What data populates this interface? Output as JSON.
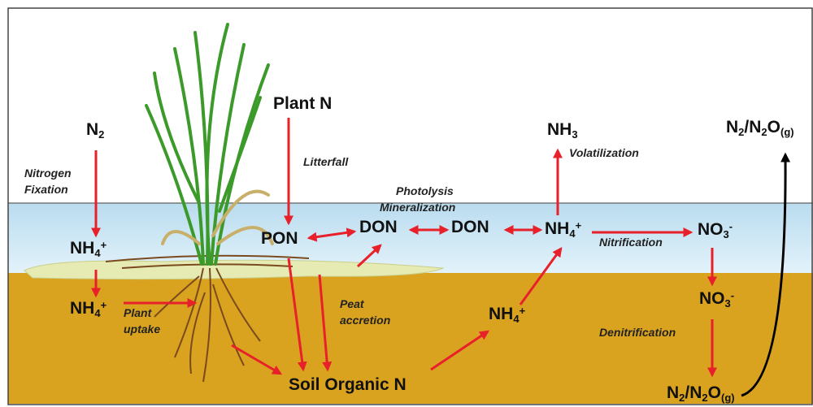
{
  "nodes": [
    {
      "parts": [
        {
          "text": "N"
        },
        {
          "text": "2",
          "pos": "sub"
        }
      ]
    },
    {
      "parts": [
        {
          "text": "NH"
        },
        {
          "text": "4",
          "pos": "sub"
        },
        {
          "text": "+",
          "pos": "sup"
        }
      ]
    },
    {
      "parts": [
        {
          "text": "NH"
        },
        {
          "text": "4",
          "pos": "sub"
        },
        {
          "text": "+",
          "pos": "sup"
        }
      ]
    },
    {
      "parts": [
        {
          "text": "Plant N"
        }
      ]
    },
    {
      "parts": [
        {
          "text": "PON"
        }
      ]
    },
    {
      "parts": [
        {
          "text": "DON"
        }
      ]
    },
    {
      "parts": [
        {
          "text": "DON"
        }
      ]
    },
    {
      "parts": [
        {
          "text": "NH"
        },
        {
          "text": "4",
          "pos": "sub"
        },
        {
          "text": "+",
          "pos": "sup"
        }
      ]
    },
    {
      "parts": [
        {
          "text": "NH"
        },
        {
          "text": "3",
          "pos": "sub"
        }
      ]
    },
    {
      "parts": [
        {
          "text": "NO"
        },
        {
          "text": "3",
          "pos": "sub"
        },
        {
          "text": "-",
          "pos": "sup"
        }
      ]
    },
    {
      "parts": [
        {
          "text": "NO"
        },
        {
          "text": "3",
          "pos": "sub"
        },
        {
          "text": "-",
          "pos": "sup"
        }
      ]
    },
    {
      "parts": [
        {
          "text": "NH"
        },
        {
          "text": "4",
          "pos": "sub"
        },
        {
          "text": "+",
          "pos": "sup"
        }
      ]
    },
    {
      "parts": [
        {
          "text": "Soil Organic N"
        }
      ]
    },
    {
      "parts": [
        {
          "text": "N"
        },
        {
          "text": "2",
          "pos": "sub"
        },
        {
          "text": "/N"
        },
        {
          "text": "2",
          "pos": "sub"
        },
        {
          "text": "O"
        },
        {
          "text": "(g)",
          "pos": "sub"
        }
      ]
    },
    {
      "parts": [
        {
          "text": "N"
        },
        {
          "text": "2",
          "pos": "sub"
        },
        {
          "text": "/N"
        },
        {
          "text": "2",
          "pos": "sub"
        },
        {
          "text": "O"
        },
        {
          "text": "(g)",
          "pos": "sub"
        }
      ]
    }
  ],
  "processes": [
    {
      "lines": [
        "Nitrogen",
        "Fixation"
      ]
    },
    {
      "lines": [
        "Plant",
        "uptake"
      ]
    },
    {
      "lines": [
        "Litterfall"
      ]
    },
    {
      "lines": [
        "Photolysis",
        "Mineralization"
      ]
    },
    {
      "lines": [
        "Peat",
        "accretion"
      ]
    },
    {
      "lines": [
        "Volatilization"
      ]
    },
    {
      "lines": [
        "Nitrification"
      ]
    },
    {
      "lines": [
        "Denitrification"
      ]
    }
  ]
}
